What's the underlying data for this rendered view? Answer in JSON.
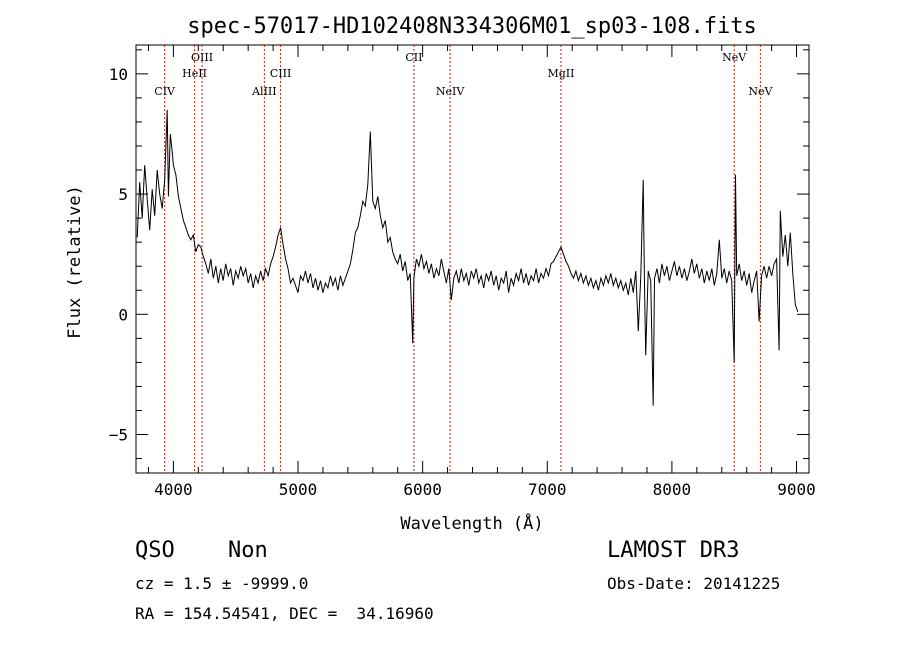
{
  "chart_data": {
    "type": "line",
    "title": "spec-57017-HD102408N334306M01_sp03-108.fits",
    "xlabel": "Wavelength (Å)",
    "ylabel": "Flux (relative)",
    "xlim": [
      3700,
      9100
    ],
    "ylim": [
      -6.6,
      11.2
    ],
    "xticks": [
      4000,
      5000,
      6000,
      7000,
      8000,
      9000
    ],
    "yticks": [
      -5,
      0,
      5,
      10
    ],
    "grid": false,
    "series": [
      {
        "points": [
          [
            3710,
            3.2
          ],
          [
            3730,
            5.5
          ],
          [
            3750,
            4.0
          ],
          [
            3770,
            6.2
          ],
          [
            3790,
            4.8
          ],
          [
            3810,
            3.5
          ],
          [
            3830,
            5.2
          ],
          [
            3850,
            4.1
          ],
          [
            3870,
            6.0
          ],
          [
            3890,
            5.0
          ],
          [
            3910,
            4.4
          ],
          [
            3930,
            5.6
          ],
          [
            3950,
            8.5
          ],
          [
            3960,
            4.9
          ],
          [
            3975,
            7.5
          ],
          [
            3990,
            6.8
          ],
          [
            4000,
            6.2
          ],
          [
            4020,
            5.8
          ],
          [
            4040,
            4.9
          ],
          [
            4060,
            4.4
          ],
          [
            4080,
            3.9
          ],
          [
            4100,
            3.6
          ],
          [
            4120,
            3.3
          ],
          [
            4140,
            3.1
          ],
          [
            4160,
            3.3
          ],
          [
            4180,
            2.6
          ],
          [
            4200,
            2.9
          ],
          [
            4220,
            2.8
          ],
          [
            4240,
            2.4
          ],
          [
            4260,
            2.1
          ],
          [
            4280,
            1.7
          ],
          [
            4300,
            2.3
          ],
          [
            4320,
            1.5
          ],
          [
            4340,
            2.0
          ],
          [
            4360,
            1.3
          ],
          [
            4380,
            1.9
          ],
          [
            4400,
            1.4
          ],
          [
            4420,
            2.1
          ],
          [
            4440,
            1.6
          ],
          [
            4460,
            1.9
          ],
          [
            4480,
            1.2
          ],
          [
            4500,
            1.8
          ],
          [
            4520,
            1.5
          ],
          [
            4540,
            2.0
          ],
          [
            4560,
            1.6
          ],
          [
            4580,
            1.9
          ],
          [
            4600,
            1.3
          ],
          [
            4620,
            1.7
          ],
          [
            4640,
            1.1
          ],
          [
            4660,
            1.6
          ],
          [
            4680,
            1.3
          ],
          [
            4700,
            1.8
          ],
          [
            4720,
            1.4
          ],
          [
            4740,
            1.9
          ],
          [
            4760,
            1.6
          ],
          [
            4780,
            2.1
          ],
          [
            4800,
            2.4
          ],
          [
            4820,
            2.8
          ],
          [
            4840,
            3.3
          ],
          [
            4860,
            3.6
          ],
          [
            4880,
            2.9
          ],
          [
            4900,
            2.3
          ],
          [
            4920,
            1.9
          ],
          [
            4940,
            1.3
          ],
          [
            4960,
            1.5
          ],
          [
            4980,
            1.2
          ],
          [
            5000,
            0.9
          ],
          [
            5020,
            1.6
          ],
          [
            5040,
            1.4
          ],
          [
            5060,
            1.8
          ],
          [
            5080,
            1.3
          ],
          [
            5100,
            1.7
          ],
          [
            5120,
            1.1
          ],
          [
            5140,
            1.5
          ],
          [
            5160,
            1.0
          ],
          [
            5180,
            1.4
          ],
          [
            5200,
            0.9
          ],
          [
            5220,
            1.3
          ],
          [
            5240,
            1.1
          ],
          [
            5260,
            1.6
          ],
          [
            5280,
            1.2
          ],
          [
            5300,
            1.5
          ],
          [
            5320,
            1.0
          ],
          [
            5340,
            1.6
          ],
          [
            5360,
            1.2
          ],
          [
            5380,
            1.5
          ],
          [
            5400,
            1.8
          ],
          [
            5420,
            2.1
          ],
          [
            5440,
            2.7
          ],
          [
            5460,
            3.4
          ],
          [
            5480,
            3.6
          ],
          [
            5500,
            4.1
          ],
          [
            5520,
            4.7
          ],
          [
            5540,
            4.5
          ],
          [
            5560,
            5.4
          ],
          [
            5580,
            7.6
          ],
          [
            5600,
            4.7
          ],
          [
            5620,
            4.4
          ],
          [
            5640,
            4.9
          ],
          [
            5660,
            4.1
          ],
          [
            5680,
            3.6
          ],
          [
            5700,
            3.9
          ],
          [
            5720,
            3.0
          ],
          [
            5740,
            3.2
          ],
          [
            5760,
            2.6
          ],
          [
            5780,
            2.3
          ],
          [
            5800,
            2.1
          ],
          [
            5820,
            2.5
          ],
          [
            5840,
            1.8
          ],
          [
            5860,
            2.2
          ],
          [
            5880,
            1.4
          ],
          [
            5900,
            1.7
          ],
          [
            5920,
            -1.2
          ],
          [
            5930,
            1.5
          ],
          [
            5950,
            2.3
          ],
          [
            5970,
            2.0
          ],
          [
            5990,
            2.5
          ],
          [
            6010,
            1.9
          ],
          [
            6030,
            2.2
          ],
          [
            6050,
            1.7
          ],
          [
            6070,
            2.1
          ],
          [
            6090,
            1.5
          ],
          [
            6110,
            1.9
          ],
          [
            6130,
            1.6
          ],
          [
            6150,
            2.3
          ],
          [
            6170,
            1.8
          ],
          [
            6190,
            1.3
          ],
          [
            6210,
            1.9
          ],
          [
            6230,
            0.6
          ],
          [
            6250,
            1.5
          ],
          [
            6270,
            1.8
          ],
          [
            6290,
            1.3
          ],
          [
            6310,
            1.9
          ],
          [
            6330,
            1.4
          ],
          [
            6350,
            1.7
          ],
          [
            6370,
            1.2
          ],
          [
            6390,
            1.8
          ],
          [
            6410,
            1.5
          ],
          [
            6430,
            1.9
          ],
          [
            6450,
            1.3
          ],
          [
            6470,
            1.6
          ],
          [
            6490,
            1.1
          ],
          [
            6510,
            1.7
          ],
          [
            6530,
            1.4
          ],
          [
            6550,
            1.8
          ],
          [
            6570,
            1.2
          ],
          [
            6590,
            1.6
          ],
          [
            6610,
            1.0
          ],
          [
            6630,
            1.5
          ],
          [
            6650,
            1.3
          ],
          [
            6670,
            1.8
          ],
          [
            6690,
            0.9
          ],
          [
            6710,
            1.5
          ],
          [
            6730,
            1.2
          ],
          [
            6750,
            1.7
          ],
          [
            6770,
            1.4
          ],
          [
            6790,
            1.9
          ],
          [
            6810,
            1.3
          ],
          [
            6830,
            1.7
          ],
          [
            6850,
            1.2
          ],
          [
            6870,
            1.6
          ],
          [
            6890,
            1.4
          ],
          [
            6910,
            1.9
          ],
          [
            6930,
            1.3
          ],
          [
            6950,
            1.7
          ],
          [
            6970,
            1.5
          ],
          [
            6990,
            1.9
          ],
          [
            7010,
            1.6
          ],
          [
            7030,
            2.1
          ],
          [
            7050,
            2.2
          ],
          [
            7070,
            2.4
          ],
          [
            7090,
            2.6
          ],
          [
            7110,
            2.8
          ],
          [
            7130,
            2.5
          ],
          [
            7150,
            2.2
          ],
          [
            7170,
            2.0
          ],
          [
            7190,
            1.7
          ],
          [
            7210,
            1.5
          ],
          [
            7230,
            1.8
          ],
          [
            7250,
            1.4
          ],
          [
            7270,
            1.7
          ],
          [
            7290,
            1.3
          ],
          [
            7310,
            1.6
          ],
          [
            7330,
            1.2
          ],
          [
            7350,
            1.5
          ],
          [
            7370,
            1.1
          ],
          [
            7390,
            1.4
          ],
          [
            7410,
            1.0
          ],
          [
            7430,
            1.5
          ],
          [
            7450,
            1.2
          ],
          [
            7470,
            1.6
          ],
          [
            7490,
            1.3
          ],
          [
            7510,
            1.7
          ],
          [
            7530,
            1.2
          ],
          [
            7550,
            1.5
          ],
          [
            7570,
            1.1
          ],
          [
            7590,
            1.4
          ],
          [
            7610,
            1.0
          ],
          [
            7630,
            1.3
          ],
          [
            7650,
            0.8
          ],
          [
            7670,
            1.5
          ],
          [
            7690,
            0.9
          ],
          [
            7710,
            1.8
          ],
          [
            7730,
            -0.7
          ],
          [
            7750,
            1.6
          ],
          [
            7770,
            5.6
          ],
          [
            7780,
            1.2
          ],
          [
            7790,
            -1.7
          ],
          [
            7810,
            1.8
          ],
          [
            7830,
            1.4
          ],
          [
            7850,
            -3.8
          ],
          [
            7860,
            1.5
          ],
          [
            7880,
            1.9
          ],
          [
            7900,
            1.3
          ],
          [
            7920,
            2.1
          ],
          [
            7940,
            1.6
          ],
          [
            7960,
            2.0
          ],
          [
            7980,
            1.4
          ],
          [
            8000,
            1.8
          ],
          [
            8020,
            2.2
          ],
          [
            8040,
            1.6
          ],
          [
            8060,
            2.0
          ],
          [
            8080,
            1.5
          ],
          [
            8100,
            1.9
          ],
          [
            8120,
            1.4
          ],
          [
            8140,
            1.8
          ],
          [
            8160,
            2.3
          ],
          [
            8180,
            1.7
          ],
          [
            8200,
            2.1
          ],
          [
            8220,
            1.5
          ],
          [
            8240,
            1.9
          ],
          [
            8260,
            1.3
          ],
          [
            8280,
            1.8
          ],
          [
            8300,
            1.4
          ],
          [
            8320,
            1.9
          ],
          [
            8340,
            1.2
          ],
          [
            8360,
            1.7
          ],
          [
            8380,
            3.1
          ],
          [
            8400,
            1.5
          ],
          [
            8420,
            1.9
          ],
          [
            8440,
            1.3
          ],
          [
            8460,
            1.8
          ],
          [
            8480,
            1.4
          ],
          [
            8500,
            -2.0
          ],
          [
            8510,
            5.8
          ],
          [
            8520,
            1.6
          ],
          [
            8540,
            2.1
          ],
          [
            8560,
            1.4
          ],
          [
            8580,
            1.8
          ],
          [
            8600,
            1.2
          ],
          [
            8620,
            1.7
          ],
          [
            8640,
            0.9
          ],
          [
            8660,
            1.4
          ],
          [
            8680,
            1.8
          ],
          [
            8700,
            -0.3
          ],
          [
            8720,
            1.6
          ],
          [
            8740,
            2.0
          ],
          [
            8760,
            1.5
          ],
          [
            8780,
            2.0
          ],
          [
            8800,
            1.6
          ],
          [
            8820,
            2.1
          ],
          [
            8840,
            2.3
          ],
          [
            8860,
            -1.5
          ],
          [
            8870,
            4.3
          ],
          [
            8890,
            2.4
          ],
          [
            8910,
            3.3
          ],
          [
            8930,
            2.0
          ],
          [
            8950,
            3.4
          ],
          [
            8970,
            1.7
          ],
          [
            8990,
            0.4
          ],
          [
            9010,
            0.1
          ]
        ]
      }
    ],
    "lines": [
      {
        "label": "CIV",
        "x": 3930,
        "row": 3
      },
      {
        "label": "HeII",
        "x": 4170,
        "row": 2
      },
      {
        "label": "OIII",
        "x": 4230,
        "row": 1
      },
      {
        "label": "AlIII",
        "x": 4730,
        "row": 3
      },
      {
        "label": "CIII",
        "x": 4860,
        "row": 2
      },
      {
        "label": "CII",
        "x": 5930,
        "row": 1
      },
      {
        "label": "NeIV",
        "x": 6220,
        "row": 3
      },
      {
        "label": "MgII",
        "x": 7110,
        "row": 2
      },
      {
        "label": "NeV",
        "x": 8500,
        "row": 1
      },
      {
        "label": "NeV",
        "x": 8710,
        "row": 3
      }
    ],
    "line_color": "#cc2200"
  },
  "info": {
    "class": "QSO",
    "subclass": "Non",
    "survey": "LAMOST DR3",
    "cz": "cz = 1.5 ± -9999.0",
    "obs_date": "Obs-Date: 20141225",
    "radec": "RA = 154.54541, DEC =  34.16960"
  }
}
